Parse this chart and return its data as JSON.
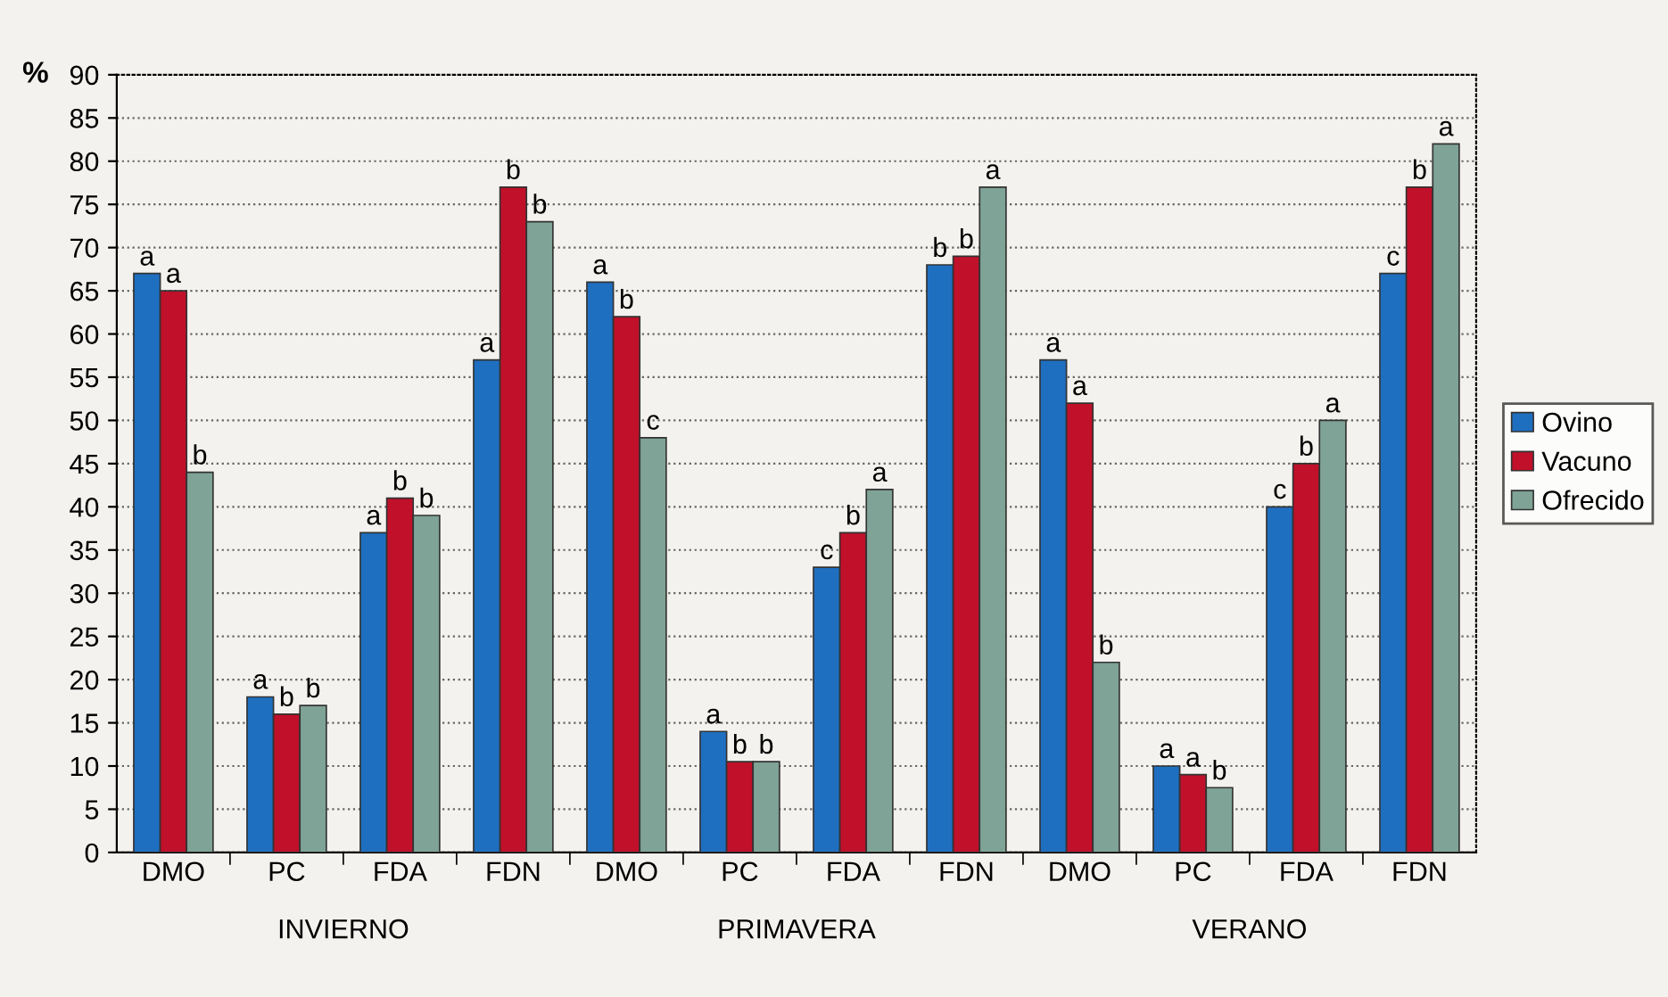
{
  "chart_data": {
    "type": "bar",
    "ylabel": "%",
    "categories": [
      "DMO",
      "PC",
      "FDA",
      "FDN",
      "DMO",
      "PC",
      "FDA",
      "FDN",
      "DMO",
      "PC",
      "FDA",
      "FDN"
    ],
    "series": [
      {
        "name": "Ovino",
        "color": "#1f6fc0",
        "values": [
          67,
          18,
          37,
          57,
          66,
          14,
          33,
          68,
          57,
          10,
          40,
          67
        ],
        "value_labels": [
          "a",
          "a",
          "a",
          "a",
          "a",
          "a",
          "c",
          "b",
          "a",
          "a",
          "c",
          "c"
        ]
      },
      {
        "name": "Vacuno",
        "color": "#c0102a",
        "values": [
          65,
          16,
          41,
          77,
          62,
          10.5,
          37,
          69,
          52,
          9,
          45,
          77
        ],
        "value_labels": [
          "a",
          "b",
          "b",
          "b",
          "b",
          "b",
          "b",
          "b",
          "a",
          "a",
          "b",
          "b"
        ]
      },
      {
        "name": "Ofrecido",
        "color": "#7fa396",
        "values": [
          44,
          17,
          39,
          73,
          48,
          10.5,
          42,
          77,
          22,
          7.5,
          50,
          82
        ],
        "value_labels": [
          "b",
          "b",
          "b",
          "b",
          "c",
          "b",
          "a",
          "a",
          "b",
          "b",
          "a",
          "a"
        ]
      }
    ],
    "annotations": [
      "INVIERNO",
      "PRIMAVERA",
      "VERANO"
    ],
    "ylim": [
      0,
      90
    ],
    "yticks": [
      0,
      5,
      10,
      15,
      20,
      25,
      30,
      35,
      40,
      45,
      50,
      55,
      60,
      65,
      70,
      75,
      80,
      85,
      90
    ],
    "grid": "y",
    "legend": "right"
  }
}
